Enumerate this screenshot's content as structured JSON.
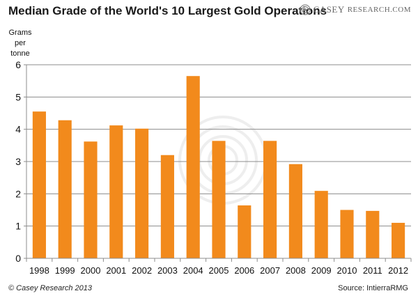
{
  "brand": {
    "colors": {
      "bar": "#F28A1C",
      "axis": "#8c8c8c",
      "grid": "#8c8c8c",
      "watermark": "#cfcfcf"
    }
  },
  "header": {
    "title": "Median Grade of the World's 10 Largest Gold Operations",
    "logo_text_first": "Casey",
    "logo_text_second": "Research.com",
    "logo_icon": "concentric-rings-icon"
  },
  "footer": {
    "copyright": "© Casey Research 2013",
    "source": "Source: IntierraRMG"
  },
  "chart_data": {
    "type": "bar",
    "title": "Median Grade of the World's 10 Largest Gold Operations",
    "ylabel": "Grams per tonne",
    "xlabel": "",
    "categories": [
      "1998",
      "1999",
      "2000",
      "2001",
      "2002",
      "2003",
      "2004",
      "2005",
      "2006",
      "2007",
      "2008",
      "2009",
      "2010",
      "2011",
      "2012"
    ],
    "values": [
      4.55,
      4.28,
      3.62,
      4.12,
      4.02,
      3.2,
      5.65,
      3.64,
      1.64,
      3.64,
      2.92,
      2.09,
      1.5,
      1.47,
      1.1
    ],
    "ylim": [
      0,
      6
    ],
    "yticks": [
      0,
      1,
      2,
      3,
      4,
      5,
      6
    ],
    "grid": true,
    "legend": "none"
  }
}
